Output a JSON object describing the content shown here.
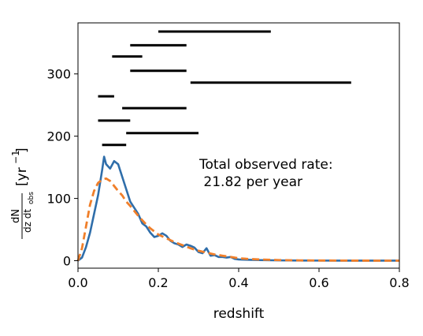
{
  "chart_data": {
    "type": "line",
    "xlabel": "redshift",
    "ylabel": {
      "frac_num": "dN",
      "frac_den": "dz dt",
      "frac_den_sub": "obs",
      "unit_open": "[yr",
      "unit_exp": "−1",
      "unit_close": "]"
    },
    "xlim": [
      0.0,
      0.8
    ],
    "ylim": [
      -12,
      382
    ],
    "xticks": [
      0.0,
      0.2,
      0.4,
      0.6,
      0.8
    ],
    "xtick_labels": [
      "0.0",
      "0.2",
      "0.4",
      "0.6",
      "0.8"
    ],
    "yticks": [
      0,
      100,
      200,
      300
    ],
    "ytick_labels": [
      "0",
      "100",
      "200",
      "300"
    ],
    "grid": false,
    "annotation": {
      "line1": "Total observed rate:",
      "line2": " 21.82 per year"
    },
    "colors": {
      "solid": "#2f6eaa",
      "dashed": "#f07f2a",
      "segments": "#000000"
    },
    "series": [
      {
        "style": "solid",
        "x": [
          0.0,
          0.01,
          0.02,
          0.03,
          0.04,
          0.05,
          0.06,
          0.065,
          0.07,
          0.08,
          0.09,
          0.1,
          0.11,
          0.12,
          0.13,
          0.14,
          0.15,
          0.16,
          0.17,
          0.18,
          0.19,
          0.2,
          0.21,
          0.22,
          0.23,
          0.24,
          0.25,
          0.26,
          0.27,
          0.28,
          0.29,
          0.3,
          0.31,
          0.32,
          0.33,
          0.34,
          0.35,
          0.36,
          0.37,
          0.38,
          0.39,
          0.4,
          0.42,
          0.45,
          0.5,
          0.55,
          0.6,
          0.65,
          0.7,
          0.75,
          0.8
        ],
        "y": [
          0,
          5,
          22,
          45,
          75,
          105,
          145,
          167,
          155,
          148,
          160,
          155,
          135,
          115,
          95,
          85,
          75,
          60,
          55,
          45,
          38,
          40,
          44,
          40,
          32,
          28,
          26,
          22,
          26,
          24,
          21,
          14,
          12,
          20,
          8,
          9,
          6,
          6,
          5,
          6,
          3,
          2,
          1.5,
          1,
          0.5,
          0.3,
          0.2,
          0.1,
          0.1,
          0.1,
          0.1
        ]
      },
      {
        "style": "dashed",
        "x": [
          0.0,
          0.01,
          0.02,
          0.03,
          0.04,
          0.05,
          0.06,
          0.07,
          0.08,
          0.09,
          0.1,
          0.11,
          0.12,
          0.13,
          0.14,
          0.15,
          0.16,
          0.17,
          0.18,
          0.19,
          0.2,
          0.22,
          0.24,
          0.26,
          0.28,
          0.3,
          0.32,
          0.34,
          0.36,
          0.38,
          0.4,
          0.42,
          0.45,
          0.5,
          0.55,
          0.6,
          0.7,
          0.8
        ],
        "y": [
          0,
          20,
          55,
          90,
          112,
          125,
          130,
          132,
          128,
          120,
          112,
          105,
          95,
          88,
          80,
          72,
          65,
          58,
          52,
          47,
          42,
          36,
          30,
          25,
          20,
          16,
          13,
          10,
          8,
          6,
          4,
          3,
          2,
          1,
          0.5,
          0.3,
          0.1,
          0.05
        ]
      }
    ],
    "segments": [
      {
        "x0": 0.2,
        "x1": 0.48,
        "y": 368
      },
      {
        "x0": 0.13,
        "x1": 0.27,
        "y": 346
      },
      {
        "x0": 0.085,
        "x1": 0.16,
        "y": 328
      },
      {
        "x0": 0.13,
        "x1": 0.27,
        "y": 305
      },
      {
        "x0": 0.28,
        "x1": 0.68,
        "y": 286
      },
      {
        "x0": 0.05,
        "x1": 0.09,
        "y": 264
      },
      {
        "x0": 0.11,
        "x1": 0.27,
        "y": 245
      },
      {
        "x0": 0.05,
        "x1": 0.13,
        "y": 225
      },
      {
        "x0": 0.12,
        "x1": 0.3,
        "y": 205
      },
      {
        "x0": 0.06,
        "x1": 0.12,
        "y": 186
      }
    ]
  }
}
